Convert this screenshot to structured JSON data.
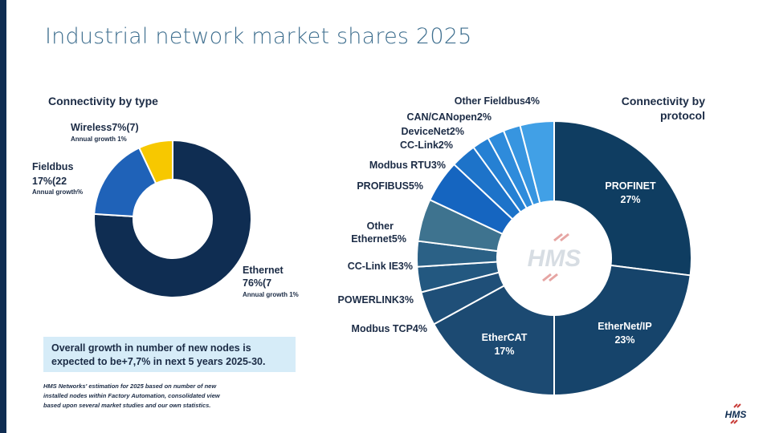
{
  "title": "Industrial network market shares 2025",
  "colors": {
    "navy": "#0f2d52",
    "blue": "#1f62b8",
    "yellow": "#f7c800",
    "accent_red": "#c83a36"
  },
  "callout": {
    "line1": "Overall growth in number of new nodes is",
    "line2": "expected to be+7,7% in next 5 years 2025-30."
  },
  "footnote": {
    "line1": "HMS Networks' estimation for 2025 based on number of new",
    "line2": "installed nodes within Factory Automation, consolidated view",
    "line3": "based upon several market studies and our own statistics."
  },
  "logo_text": "HMS",
  "chart_data": [
    {
      "type": "pie",
      "title": "Connectivity by type",
      "slices": [
        {
          "name": "Ethernet",
          "value": 76,
          "label_line2": "76%(7",
          "growth": "Annual growth 1%",
          "color": "#0f2d52"
        },
        {
          "name": "Fieldbus",
          "value": 17,
          "label_line2": "17%(22",
          "growth": "Annual growth%",
          "color": "#1f62b8"
        },
        {
          "name": "Wireless",
          "value": 7,
          "label_line1": "Wireless7%(7)",
          "growth": "Annual growth 1%",
          "color": "#f7c800"
        }
      ]
    },
    {
      "type": "pie",
      "title_line1": "Connectivity by",
      "title_line2": "protocol",
      "slices": [
        {
          "name": "PROFINET",
          "value": 27,
          "label": "27%",
          "color": "#0f3d61"
        },
        {
          "name": "EtherNet/IP",
          "value": 23,
          "label": "23%",
          "color": "#16446b"
        },
        {
          "name": "EtherCAT",
          "value": 17,
          "label": "17%",
          "color": "#1c4a72"
        },
        {
          "name": "Modbus TCP",
          "value": 4,
          "label": "Modbus TCP4%",
          "color": "#1f4f78"
        },
        {
          "name": "POWERLINK",
          "value": 3,
          "label": "POWERLINK3%",
          "color": "#235880"
        },
        {
          "name": "CC-Link IE",
          "value": 3,
          "label": "CC-Link IE3%",
          "color": "#2b6186"
        },
        {
          "name": "Other Ethernet",
          "value": 5,
          "label_line1": "Other",
          "label_line2": "Ethernet5%",
          "color": "#3e738f"
        },
        {
          "name": "PROFIBUS",
          "value": 5,
          "label": "PROFIBUS5%",
          "color": "#1565c0"
        },
        {
          "name": "Modbus RTU",
          "value": 3,
          "label": "Modbus RTU3%",
          "color": "#1d73c9"
        },
        {
          "name": "CC-Link",
          "value": 2,
          "label": "CC-Link2%",
          "color": "#2580d3"
        },
        {
          "name": "DeviceNet",
          "value": 2,
          "label": "DeviceNet2%",
          "color": "#2e8bdb"
        },
        {
          "name": "CAN/CANopen",
          "value": 2,
          "label": "CAN/CANopen2%",
          "color": "#3795e0"
        },
        {
          "name": "Other Fieldbus",
          "value": 4,
          "label": "Other Fieldbus4%",
          "color": "#41a0e6"
        }
      ]
    }
  ]
}
